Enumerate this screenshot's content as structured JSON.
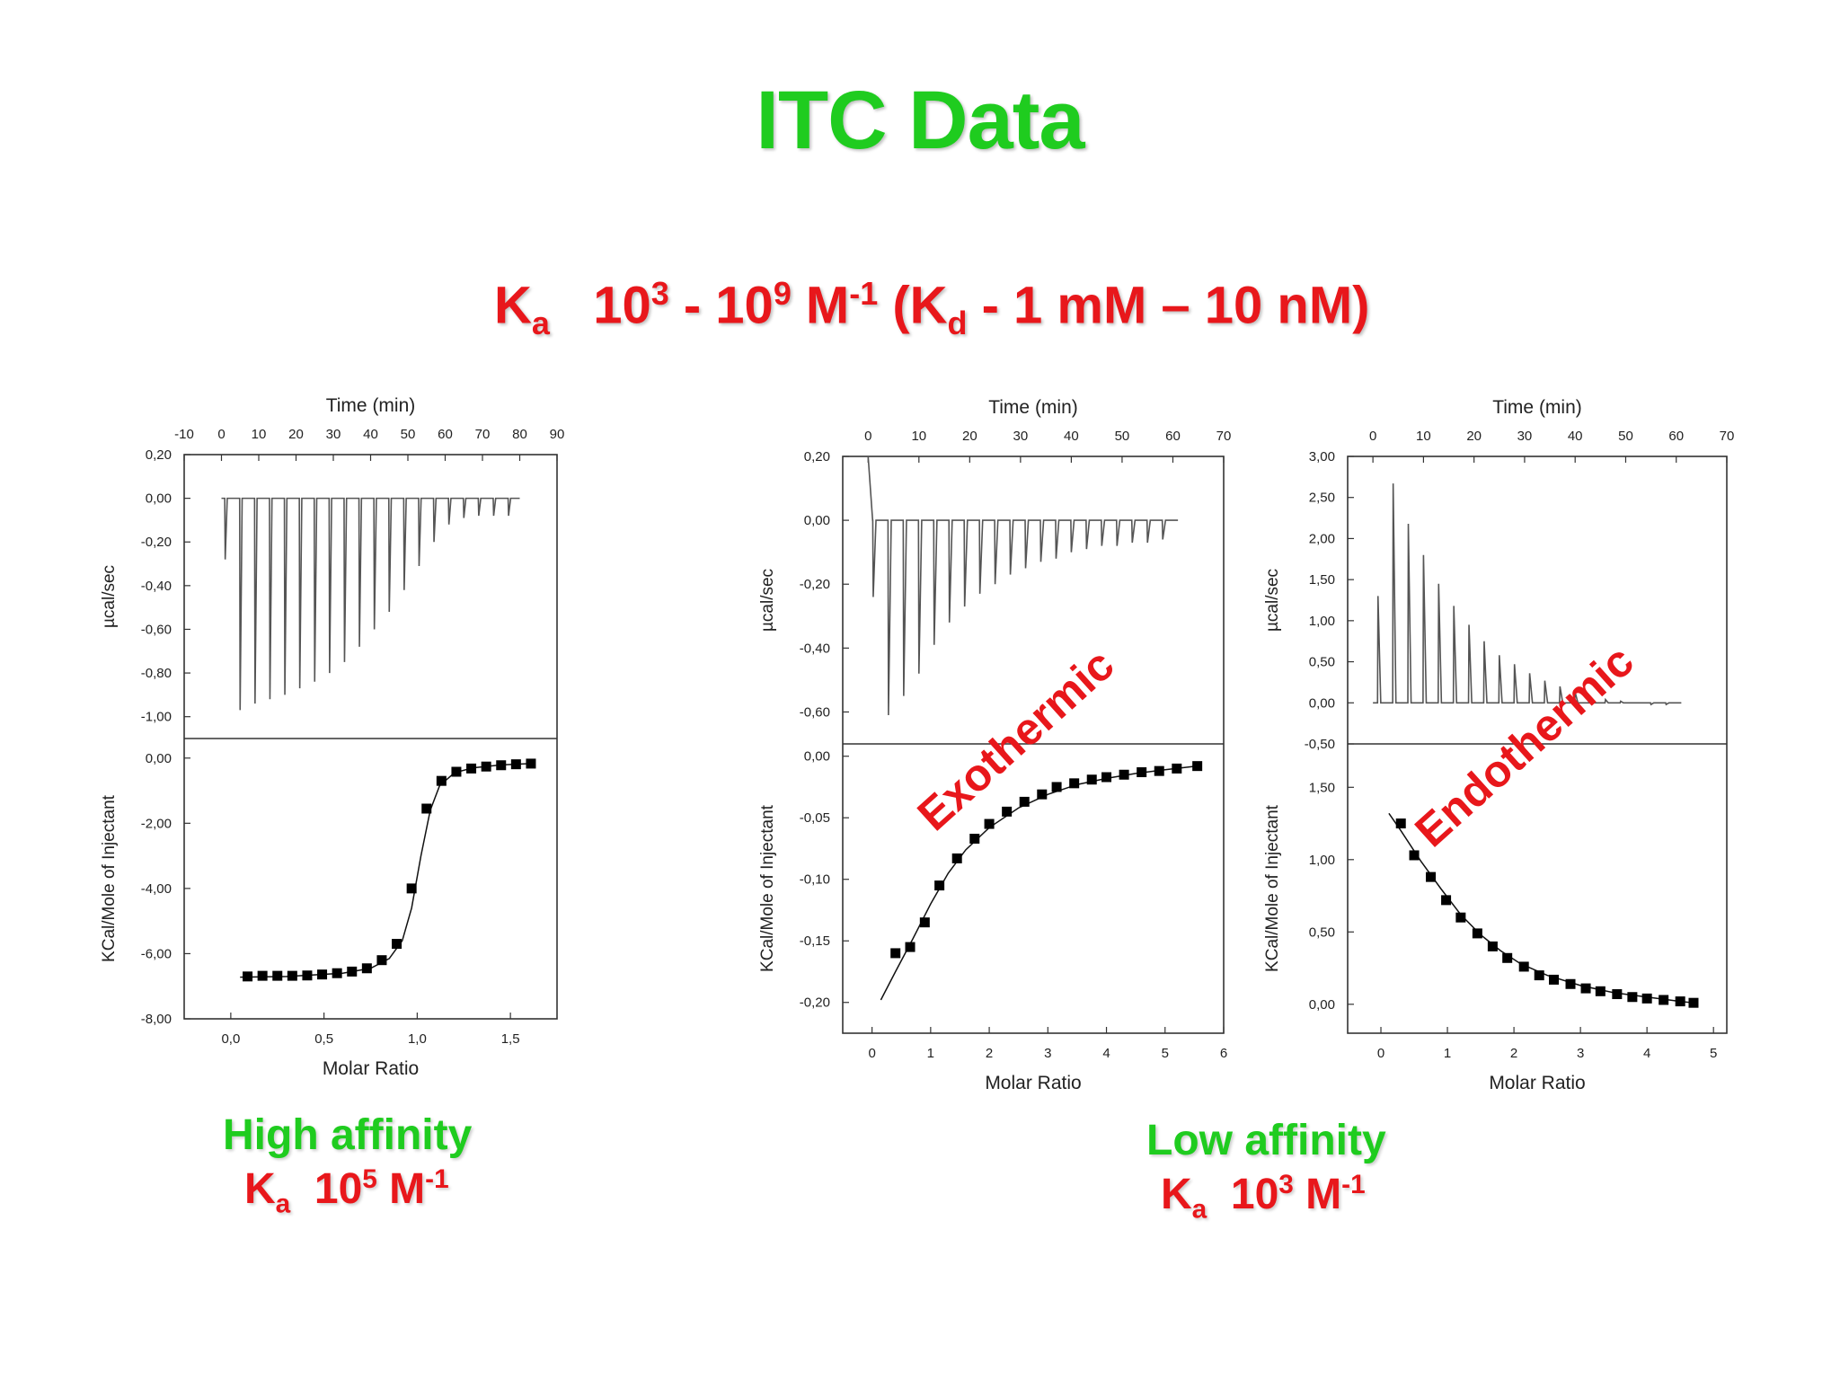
{
  "page": {
    "title": "ITC Data",
    "ka_range": {
      "k": "K",
      "k_sub": "a",
      "base1": "10",
      "exp1": "3",
      "dash": " - ",
      "base2": "10",
      "exp2": "9",
      "unit": " M",
      "unit_exp": "-1",
      "paren_open": " (K",
      "kd_sub": "d",
      "kd_text": " - 1 mM – 10 nM)"
    },
    "high_affinity": {
      "label": "High affinity",
      "k": "K",
      "k_sub": "a",
      "base": "10",
      "exp": "5",
      "unit": " M",
      "unit_exp": "-1"
    },
    "low_affinity": {
      "label": "Low affinity",
      "k": "K",
      "k_sub": "a",
      "base": "10",
      "exp": "3",
      "unit": " M",
      "unit_exp": "-1"
    },
    "annotations": {
      "exothermic": "Exothermic",
      "endothermic": "Endothermic"
    }
  },
  "colors": {
    "title_green": "#1fcc1f",
    "label_red": "#e8171b",
    "axis": "#333333",
    "trace": "#555555"
  },
  "chart_data": [
    {
      "id": "high",
      "type": "line",
      "top": {
        "xlabel": "Time (min)",
        "ylabel": "µcal/sec",
        "xlim": [
          -10,
          90
        ],
        "xticks": [
          -10,
          0,
          10,
          20,
          30,
          40,
          50,
          60,
          70,
          80,
          90
        ],
        "ylim": [
          -1.1,
          0.2
        ],
        "yticks": [
          0.2,
          0.0,
          -0.2,
          -0.4,
          -0.6,
          -0.8,
          -1.0
        ],
        "ytick_labels": [
          "0,20",
          "0,00",
          "-0,20",
          "-0,40",
          "-0,60",
          "-0,80",
          "-1,00"
        ],
        "baseline": 0.0,
        "x_start": 0,
        "x_end": 80,
        "peak_times": [
          1,
          5,
          9,
          13,
          17,
          21,
          25,
          29,
          33,
          37,
          41,
          45,
          49,
          53,
          57,
          61,
          65,
          69,
          73,
          77
        ],
        "peak_values": [
          -0.28,
          -0.97,
          -0.94,
          -0.92,
          -0.9,
          -0.87,
          -0.84,
          -0.8,
          -0.75,
          -0.68,
          -0.6,
          -0.52,
          -0.42,
          -0.31,
          -0.2,
          -0.12,
          -0.09,
          -0.08,
          -0.08,
          -0.08
        ]
      },
      "bottom": {
        "xlabel": "Molar Ratio",
        "ylabel": "KCal/Mole of Injectant",
        "xlim": [
          -0.25,
          1.75
        ],
        "xticks": [
          0.0,
          0.5,
          1.0,
          1.5
        ],
        "xtick_labels": [
          "0,0",
          "0,5",
          "1,0",
          "1,5"
        ],
        "ylim": [
          -8.0,
          0.6
        ],
        "yticks": [
          0.0,
          -2.0,
          -4.0,
          -6.0,
          -8.0
        ],
        "ytick_labels": [
          "0,00",
          "-2,00",
          "-4,00",
          "-6,00",
          "-8,00"
        ],
        "x": [
          0.09,
          0.17,
          0.25,
          0.33,
          0.41,
          0.49,
          0.57,
          0.65,
          0.73,
          0.81,
          0.89,
          0.97,
          1.05,
          1.13,
          1.21,
          1.29,
          1.37,
          1.45,
          1.53,
          1.61
        ],
        "y": [
          -6.7,
          -6.68,
          -6.68,
          -6.68,
          -6.67,
          -6.64,
          -6.6,
          -6.55,
          -6.45,
          -6.2,
          -5.7,
          -4.0,
          -1.55,
          -0.7,
          -0.42,
          -0.32,
          -0.26,
          -0.22,
          -0.19,
          -0.17
        ],
        "fit_x": [
          0.05,
          0.3,
          0.6,
          0.75,
          0.85,
          0.92,
          0.97,
          1.02,
          1.07,
          1.12,
          1.2,
          1.3,
          1.45,
          1.61
        ],
        "fit_y": [
          -6.72,
          -6.7,
          -6.6,
          -6.45,
          -6.15,
          -5.6,
          -4.6,
          -3.0,
          -1.6,
          -0.85,
          -0.45,
          -0.3,
          -0.21,
          -0.17
        ]
      }
    },
    {
      "id": "exo",
      "type": "line",
      "top": {
        "xlabel": "Time (min)",
        "ylabel": "µcal/sec",
        "xlim": [
          -5,
          70
        ],
        "xticks": [
          0,
          10,
          20,
          30,
          40,
          50,
          60,
          70
        ],
        "ylim": [
          -0.7,
          0.2
        ],
        "yticks": [
          0.2,
          0.0,
          -0.2,
          -0.4,
          -0.6
        ],
        "ytick_labels": [
          "0,20",
          "0,00",
          "-0,20",
          "-0,40",
          "-0,60"
        ],
        "baseline": 0.0,
        "x_start": 0,
        "x_end": 61,
        "start_spike": 0.2,
        "peak_times": [
          1,
          4,
          7,
          10,
          13,
          16,
          19,
          22,
          25,
          28,
          31,
          34,
          37,
          40,
          43,
          46,
          49,
          52,
          55,
          58
        ],
        "peak_values": [
          -0.24,
          -0.61,
          -0.55,
          -0.48,
          -0.39,
          -0.32,
          -0.27,
          -0.23,
          -0.2,
          -0.17,
          -0.15,
          -0.13,
          -0.12,
          -0.1,
          -0.09,
          -0.08,
          -0.08,
          -0.07,
          -0.07,
          -0.06
        ]
      },
      "bottom": {
        "xlabel": "Molar Ratio",
        "ylabel": "KCal/Mole of Injectant",
        "xlim": [
          -0.5,
          6
        ],
        "xticks": [
          0,
          1,
          2,
          3,
          4,
          5,
          6
        ],
        "xtick_labels": [
          "0",
          "1",
          "2",
          "3",
          "4",
          "5",
          "6"
        ],
        "ylim": [
          -0.225,
          0.01
        ],
        "yticks": [
          0.0,
          -0.05,
          -0.1,
          -0.15,
          -0.2
        ],
        "ytick_labels": [
          "0,00",
          "-0,05",
          "-0,10",
          "-0,15",
          "-0,20"
        ],
        "x": [
          0.4,
          0.65,
          0.9,
          1.15,
          1.45,
          1.75,
          2.0,
          2.3,
          2.6,
          2.9,
          3.15,
          3.45,
          3.75,
          4.0,
          4.3,
          4.6,
          4.9,
          5.2,
          5.55
        ],
        "y": [
          -0.16,
          -0.155,
          -0.135,
          -0.105,
          -0.083,
          -0.067,
          -0.055,
          -0.045,
          -0.037,
          -0.031,
          -0.025,
          -0.022,
          -0.019,
          -0.017,
          -0.015,
          -0.013,
          -0.012,
          -0.01,
          -0.008
        ],
        "fit_x": [
          0.15,
          0.4,
          0.7,
          1.0,
          1.3,
          1.6,
          2.0,
          2.5,
          3.0,
          3.5,
          4.0,
          4.5,
          5.0,
          5.55
        ],
        "fit_y": [
          -0.198,
          -0.175,
          -0.148,
          -0.12,
          -0.095,
          -0.076,
          -0.058,
          -0.042,
          -0.031,
          -0.023,
          -0.018,
          -0.014,
          -0.011,
          -0.008
        ]
      }
    },
    {
      "id": "endo",
      "type": "line",
      "top": {
        "xlabel": "Time (min)",
        "ylabel": "µcal/sec",
        "xlim": [
          -5,
          70
        ],
        "xticks": [
          0,
          10,
          20,
          30,
          40,
          50,
          60,
          70
        ],
        "ylim": [
          -0.5,
          3.0
        ],
        "yticks": [
          3.0,
          2.5,
          2.0,
          1.5,
          1.0,
          0.5,
          0.0,
          -0.5
        ],
        "ytick_labels": [
          "3,00",
          "2,50",
          "2,00",
          "1,50",
          "1,00",
          "0,50",
          "0,00",
          "-0,50"
        ],
        "baseline": 0.0,
        "x_start": 0,
        "x_end": 61,
        "peak_times": [
          1,
          4,
          7,
          10,
          13,
          16,
          19,
          22,
          25,
          28,
          31,
          34,
          37,
          40,
          43,
          46,
          49,
          52,
          55,
          58
        ],
        "peak_values": [
          1.3,
          2.67,
          2.18,
          1.8,
          1.45,
          1.18,
          0.95,
          0.75,
          0.58,
          0.47,
          0.36,
          0.27,
          0.2,
          0.13,
          0.08,
          0.04,
          0.02,
          0.0,
          -0.02,
          -0.02
        ]
      },
      "bottom": {
        "xlabel": "Molar Ratio",
        "ylabel": "KCal/Mole of Injectant",
        "xlim": [
          -0.5,
          5.2
        ],
        "xticks": [
          0,
          1,
          2,
          3,
          4,
          5
        ],
        "xtick_labels": [
          "0",
          "1",
          "2",
          "3",
          "4",
          "5"
        ],
        "ylim": [
          -0.2,
          1.8
        ],
        "yticks": [
          1.5,
          1.0,
          0.5,
          0.0
        ],
        "ytick_labels": [
          "1,50",
          "1,00",
          "0,50",
          "0,00"
        ],
        "x": [
          0.3,
          0.5,
          0.75,
          0.98,
          1.2,
          1.45,
          1.68,
          1.9,
          2.15,
          2.38,
          2.6,
          2.85,
          3.08,
          3.3,
          3.55,
          3.78,
          4.0,
          4.25,
          4.5,
          4.7
        ],
        "y": [
          1.25,
          1.03,
          0.88,
          0.72,
          0.6,
          0.49,
          0.4,
          0.32,
          0.26,
          0.2,
          0.17,
          0.14,
          0.11,
          0.09,
          0.07,
          0.05,
          0.04,
          0.03,
          0.02,
          0.01
        ],
        "fit_x": [
          0.12,
          0.3,
          0.6,
          0.9,
          1.2,
          1.5,
          1.8,
          2.1,
          2.5,
          3.0,
          3.5,
          4.0,
          4.5,
          4.7
        ],
        "fit_y": [
          1.32,
          1.2,
          0.99,
          0.8,
          0.62,
          0.48,
          0.37,
          0.28,
          0.2,
          0.13,
          0.08,
          0.05,
          0.02,
          0.01
        ]
      }
    }
  ]
}
